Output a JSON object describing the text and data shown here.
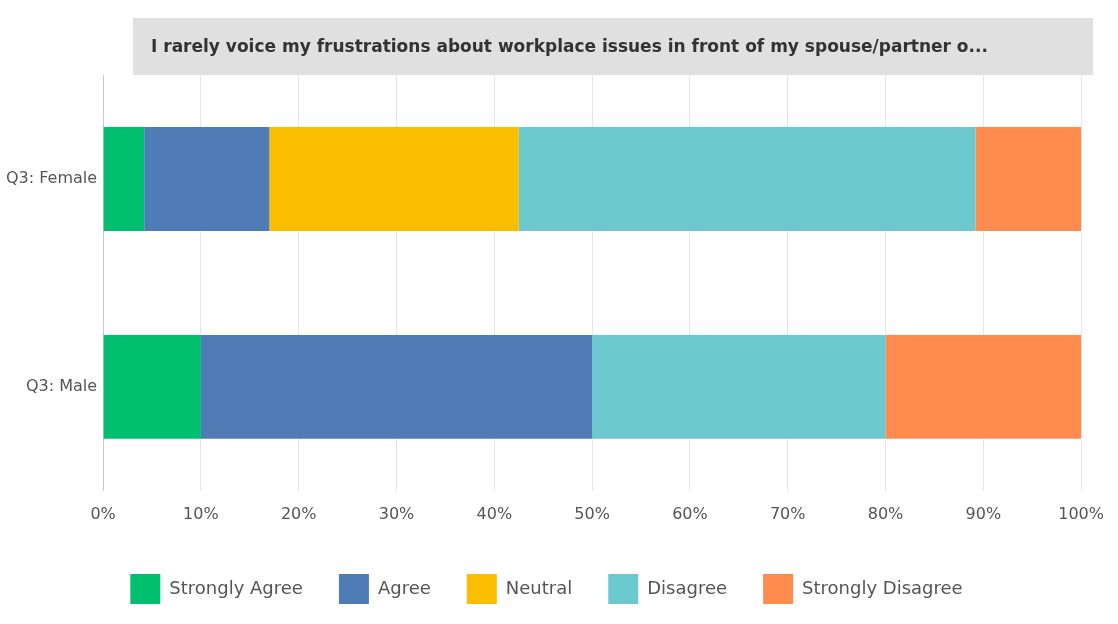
{
  "chart_data": {
    "type": "bar",
    "orientation": "horizontal",
    "stacked": true,
    "title": "I rarely voice my frustrations about workplace issues in front of my spouse/partner o...",
    "categories": [
      "Q3: Female",
      "Q3: Male"
    ],
    "series": [
      {
        "name": "Strongly Agree",
        "color": "#00bf6f",
        "values": [
          4.2,
          10
        ]
      },
      {
        "name": "Agree",
        "color": "#507cb6",
        "values": [
          12.8,
          40
        ]
      },
      {
        "name": "Neutral",
        "color": "#f9be00",
        "values": [
          25.5,
          0
        ]
      },
      {
        "name": "Disagree",
        "color": "#6bc8cd",
        "values": [
          46.7,
          30
        ]
      },
      {
        "name": "Strongly Disagree",
        "color": "#ff8b4f",
        "values": [
          10.8,
          20
        ]
      }
    ],
    "xlim": [
      0,
      100
    ],
    "xticks": [
      {
        "value": 0,
        "label": "0%"
      },
      {
        "value": 10,
        "label": "10%"
      },
      {
        "value": 20,
        "label": "20%"
      },
      {
        "value": 30,
        "label": "30%"
      },
      {
        "value": 40,
        "label": "40%"
      },
      {
        "value": 50,
        "label": "50%"
      },
      {
        "value": 60,
        "label": "60%"
      },
      {
        "value": 70,
        "label": "70%"
      },
      {
        "value": 80,
        "label": "80%"
      },
      {
        "value": 90,
        "label": "90%"
      },
      {
        "value": 100,
        "label": "100%"
      }
    ],
    "grid": "x",
    "legend": "bottom"
  }
}
